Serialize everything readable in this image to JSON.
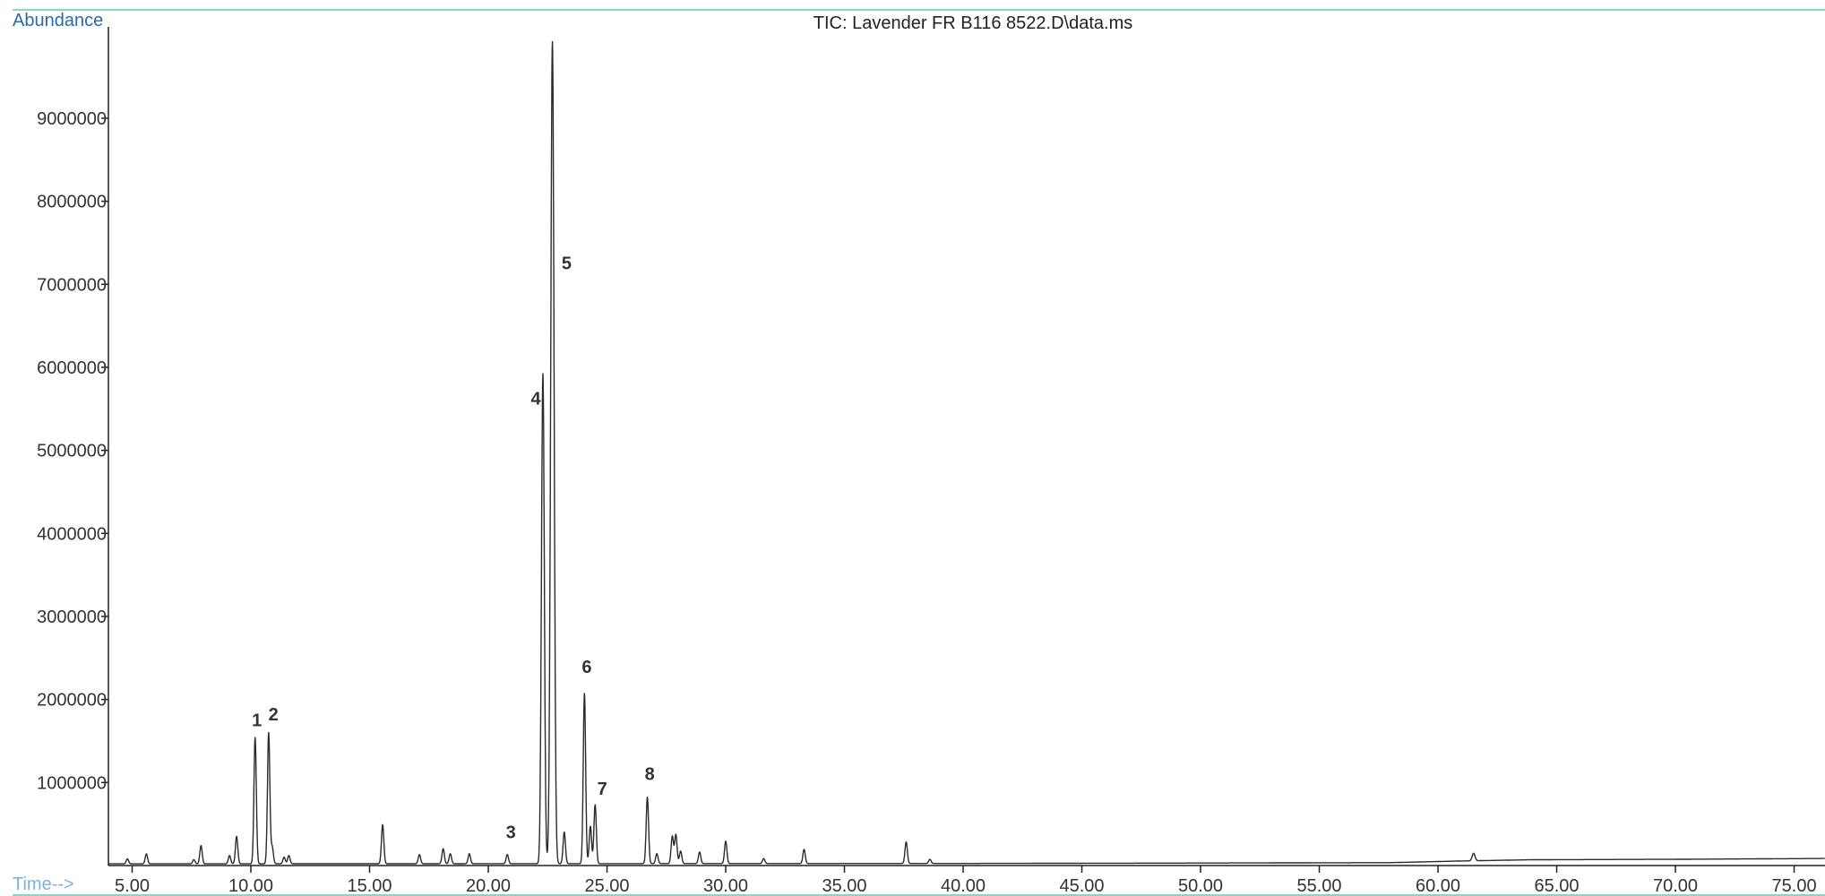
{
  "chart_data": {
    "type": "line",
    "title": "TIC: Lavender FR B116 8522.D\\data.ms",
    "ylabel": "Abundance",
    "xlabel": "Time-->",
    "xlim": [
      4.0,
      76.3
    ],
    "ylim": [
      0,
      10100000
    ],
    "xticks": [
      5,
      10,
      15,
      20,
      25,
      30,
      35,
      40,
      45,
      50,
      55,
      60,
      65,
      70,
      75
    ],
    "xtick_labels": [
      "5.00",
      "10.00",
      "15.00",
      "20.00",
      "25.00",
      "30.00",
      "35.00",
      "40.00",
      "45.00",
      "50.00",
      "55.00",
      "60.00",
      "65.00",
      "70.00",
      "75.00"
    ],
    "yticks": [
      1000000,
      2000000,
      3000000,
      4000000,
      5000000,
      6000000,
      7000000,
      8000000,
      9000000
    ],
    "ytick_labels": [
      "1000000",
      "2000000",
      "3000000",
      "4000000",
      "5000000",
      "6000000",
      "7000000",
      "8000000",
      "9000000"
    ],
    "grid": false,
    "peaks": [
      {
        "t": 4.8,
        "h": 60000,
        "w": 0.05
      },
      {
        "t": 5.6,
        "h": 120000,
        "w": 0.05
      },
      {
        "t": 7.6,
        "h": 50000,
        "w": 0.05
      },
      {
        "t": 7.9,
        "h": 220000,
        "w": 0.05
      },
      {
        "t": 9.1,
        "h": 100000,
        "w": 0.05
      },
      {
        "t": 9.4,
        "h": 330000,
        "w": 0.05
      },
      {
        "t": 10.18,
        "h": 1520000,
        "w": 0.05
      },
      {
        "t": 10.75,
        "h": 1580000,
        "w": 0.05
      },
      {
        "t": 10.9,
        "h": 200000,
        "w": 0.05
      },
      {
        "t": 11.4,
        "h": 80000,
        "w": 0.05
      },
      {
        "t": 11.6,
        "h": 100000,
        "w": 0.05
      },
      {
        "t": 15.55,
        "h": 470000,
        "w": 0.05
      },
      {
        "t": 17.1,
        "h": 110000,
        "w": 0.05
      },
      {
        "t": 18.1,
        "h": 180000,
        "w": 0.05
      },
      {
        "t": 18.4,
        "h": 120000,
        "w": 0.05
      },
      {
        "t": 19.2,
        "h": 120000,
        "w": 0.05
      },
      {
        "t": 20.8,
        "h": 110000,
        "w": 0.05
      },
      {
        "t": 22.3,
        "h": 5900000,
        "w": 0.06
      },
      {
        "t": 22.7,
        "h": 9900000,
        "w": 0.07
      },
      {
        "t": 23.2,
        "h": 380000,
        "w": 0.05
      },
      {
        "t": 24.05,
        "h": 2050000,
        "w": 0.05
      },
      {
        "t": 24.3,
        "h": 450000,
        "w": 0.05
      },
      {
        "t": 24.5,
        "h": 710000,
        "w": 0.05
      },
      {
        "t": 26.7,
        "h": 800000,
        "w": 0.05
      },
      {
        "t": 27.1,
        "h": 120000,
        "w": 0.05
      },
      {
        "t": 27.75,
        "h": 330000,
        "w": 0.05
      },
      {
        "t": 27.9,
        "h": 350000,
        "w": 0.05
      },
      {
        "t": 28.1,
        "h": 150000,
        "w": 0.05
      },
      {
        "t": 28.9,
        "h": 140000,
        "w": 0.05
      },
      {
        "t": 30.0,
        "h": 270000,
        "w": 0.05
      },
      {
        "t": 31.6,
        "h": 60000,
        "w": 0.05
      },
      {
        "t": 33.3,
        "h": 170000,
        "w": 0.05
      },
      {
        "t": 37.6,
        "h": 260000,
        "w": 0.05
      },
      {
        "t": 38.6,
        "h": 50000,
        "w": 0.05
      },
      {
        "t": 61.5,
        "h": 90000,
        "w": 0.06
      }
    ],
    "baseline": [
      {
        "t": 4.0,
        "y": 20000
      },
      {
        "t": 40.0,
        "y": 25000
      },
      {
        "t": 50.0,
        "y": 30000
      },
      {
        "t": 58.0,
        "y": 35000
      },
      {
        "t": 61.0,
        "y": 55000
      },
      {
        "t": 64.0,
        "y": 70000
      },
      {
        "t": 70.0,
        "y": 75000
      },
      {
        "t": 76.3,
        "y": 85000
      }
    ],
    "peak_labels": [
      {
        "text": "1",
        "t": 10.25,
        "y": 1680000
      },
      {
        "text": "2",
        "t": 10.95,
        "y": 1750000
      },
      {
        "text": "3",
        "t": 20.95,
        "y": 330000
      },
      {
        "text": "4",
        "t": 22.0,
        "y": 5550000
      },
      {
        "text": "5",
        "t": 23.3,
        "y": 7180000
      },
      {
        "text": "6",
        "t": 24.15,
        "y": 2320000
      },
      {
        "text": "7",
        "t": 24.8,
        "y": 850000
      },
      {
        "text": "8",
        "t": 26.8,
        "y": 1030000
      }
    ]
  }
}
